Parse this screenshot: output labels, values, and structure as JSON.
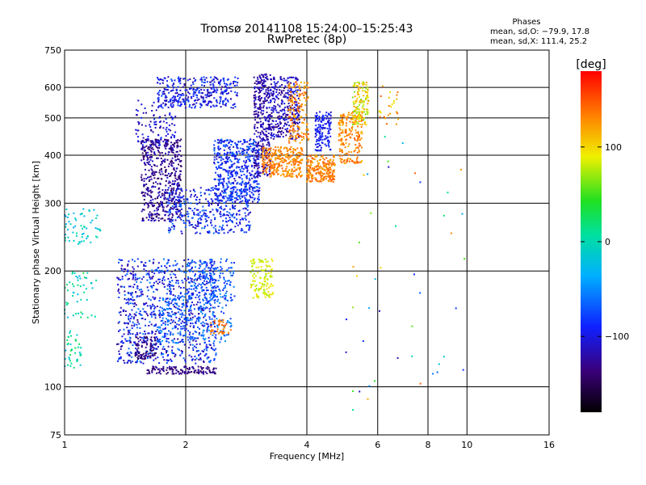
{
  "chart_data": {
    "type": "scatter",
    "title": "Tromsø 20141108 15:24:00–15:25:43",
    "subtitle": "RwPretec (8p)",
    "xlabel": "Frequency [MHz]",
    "ylabel": "Stationary phase Virtual Height [km]",
    "x_scale": "log",
    "y_scale": "log",
    "xlim": [
      1,
      16
    ],
    "ylim": [
      75,
      750
    ],
    "x_ticks": [
      "1",
      "2",
      "4",
      "6",
      "8",
      "10",
      "16"
    ],
    "x_tick_values": [
      1,
      2,
      4,
      6,
      8,
      10,
      16
    ],
    "x_grid_values": [
      1,
      2,
      4,
      6,
      8,
      10,
      16
    ],
    "y_ticks": [
      "75",
      "100",
      "200",
      "300",
      "400",
      "500",
      "600",
      "750"
    ],
    "y_tick_values": [
      75,
      100,
      200,
      300,
      400,
      500,
      600,
      750
    ],
    "y_grid_values": [
      100,
      200,
      300,
      400,
      500,
      600
    ],
    "grid": true,
    "stats": {
      "header": "Phases",
      "line_o": "mean, sd,O: −79.9, 17.8",
      "line_x": "mean, sd,X: 111.4, 25.2"
    },
    "colorbar": {
      "label": "[deg]",
      "range": [
        -180,
        180
      ],
      "ticks": [
        "100",
        "0",
        "−100"
      ],
      "tick_values": [
        100,
        0,
        -100
      ]
    },
    "seed": 20141108,
    "clusters": [
      {
        "fr": [
          1.55,
          1.95
        ],
        "hr": [
          270,
          440
        ],
        "n": 520,
        "ph": [
          -150,
          -105
        ]
      },
      {
        "fr": [
          1.35,
          2.4
        ],
        "hr": [
          115,
          215
        ],
        "n": 900,
        "ph": [
          -130,
          -55
        ]
      },
      {
        "fr": [
          1.5,
          1.7
        ],
        "hr": [
          118,
          135
        ],
        "n": 90,
        "ph": [
          -150,
          -120
        ]
      },
      {
        "fr": [
          1.6,
          2.4
        ],
        "hr": [
          108,
          113
        ],
        "n": 130,
        "ph": [
          -145,
          -120
        ]
      },
      {
        "fr": [
          1.7,
          2.6
        ],
        "hr": [
          130,
          175
        ],
        "n": 220,
        "ph": [
          -90,
          -40
        ]
      },
      {
        "fr": [
          2.0,
          2.65
        ],
        "hr": [
          165,
          215
        ],
        "n": 180,
        "ph": [
          -90,
          -50
        ]
      },
      {
        "fr": [
          1.8,
          2.9
        ],
        "hr": [
          250,
          330
        ],
        "n": 380,
        "ph": [
          -120,
          -60
        ]
      },
      {
        "fr": [
          2.35,
          3.05
        ],
        "hr": [
          300,
          440
        ],
        "n": 500,
        "ph": [
          -115,
          -60
        ]
      },
      {
        "fr": [
          1.7,
          2.7
        ],
        "hr": [
          530,
          640
        ],
        "n": 360,
        "ph": [
          -125,
          -70
        ]
      },
      {
        "fr": [
          1.5,
          1.9
        ],
        "hr": [
          420,
          560
        ],
        "n": 120,
        "ph": [
          -130,
          -80
        ]
      },
      {
        "fr": [
          2.95,
          3.25
        ],
        "hr": [
          350,
          650
        ],
        "n": 340,
        "ph": [
          -140,
          -100
        ]
      },
      {
        "fr": [
          3.25,
          3.85
        ],
        "hr": [
          440,
          640
        ],
        "n": 320,
        "ph": [
          -140,
          -90
        ]
      },
      {
        "fr": [
          3.1,
          3.9
        ],
        "hr": [
          350,
          420
        ],
        "n": 300,
        "ph": [
          115,
          150
        ]
      },
      {
        "fr": [
          3.6,
          4.05
        ],
        "hr": [
          430,
          620
        ],
        "n": 150,
        "ph": [
          110,
          150
        ]
      },
      {
        "fr": [
          4.0,
          4.7
        ],
        "hr": [
          340,
          400
        ],
        "n": 230,
        "ph": [
          115,
          150
        ]
      },
      {
        "fr": [
          4.2,
          4.6
        ],
        "hr": [
          410,
          520
        ],
        "n": 140,
        "ph": [
          -110,
          -80
        ]
      },
      {
        "fr": [
          4.8,
          5.5
        ],
        "hr": [
          380,
          520
        ],
        "n": 200,
        "ph": [
          110,
          150
        ]
      },
      {
        "fr": [
          5.2,
          5.7
        ],
        "hr": [
          480,
          620
        ],
        "n": 140,
        "ph": [
          60,
          130
        ]
      },
      {
        "fr": [
          2.9,
          3.3
        ],
        "hr": [
          170,
          215
        ],
        "n": 120,
        "ph": [
          70,
          100
        ]
      },
      {
        "fr": [
          2.3,
          2.6
        ],
        "hr": [
          137,
          150
        ],
        "n": 40,
        "ph": [
          120,
          150
        ]
      },
      {
        "fr": [
          1.0,
          1.1
        ],
        "hr": [
          112,
          140
        ],
        "n": 40,
        "ph": [
          -20,
          30
        ]
      },
      {
        "fr": [
          1.0,
          1.25
        ],
        "hr": [
          235,
          290
        ],
        "n": 60,
        "ph": [
          -40,
          10
        ]
      },
      {
        "fr": [
          1.0,
          1.2
        ],
        "hr": [
          150,
          200
        ],
        "n": 50,
        "ph": [
          -30,
          30
        ]
      },
      {
        "fr": [
          6.0,
          6.8
        ],
        "hr": [
          480,
          620
        ],
        "n": 25,
        "ph": [
          90,
          150
        ]
      },
      {
        "fr": [
          5.0,
          10.0
        ],
        "hr": [
          80,
          450
        ],
        "n": 45,
        "ph": [
          -120,
          150
        ]
      }
    ]
  }
}
